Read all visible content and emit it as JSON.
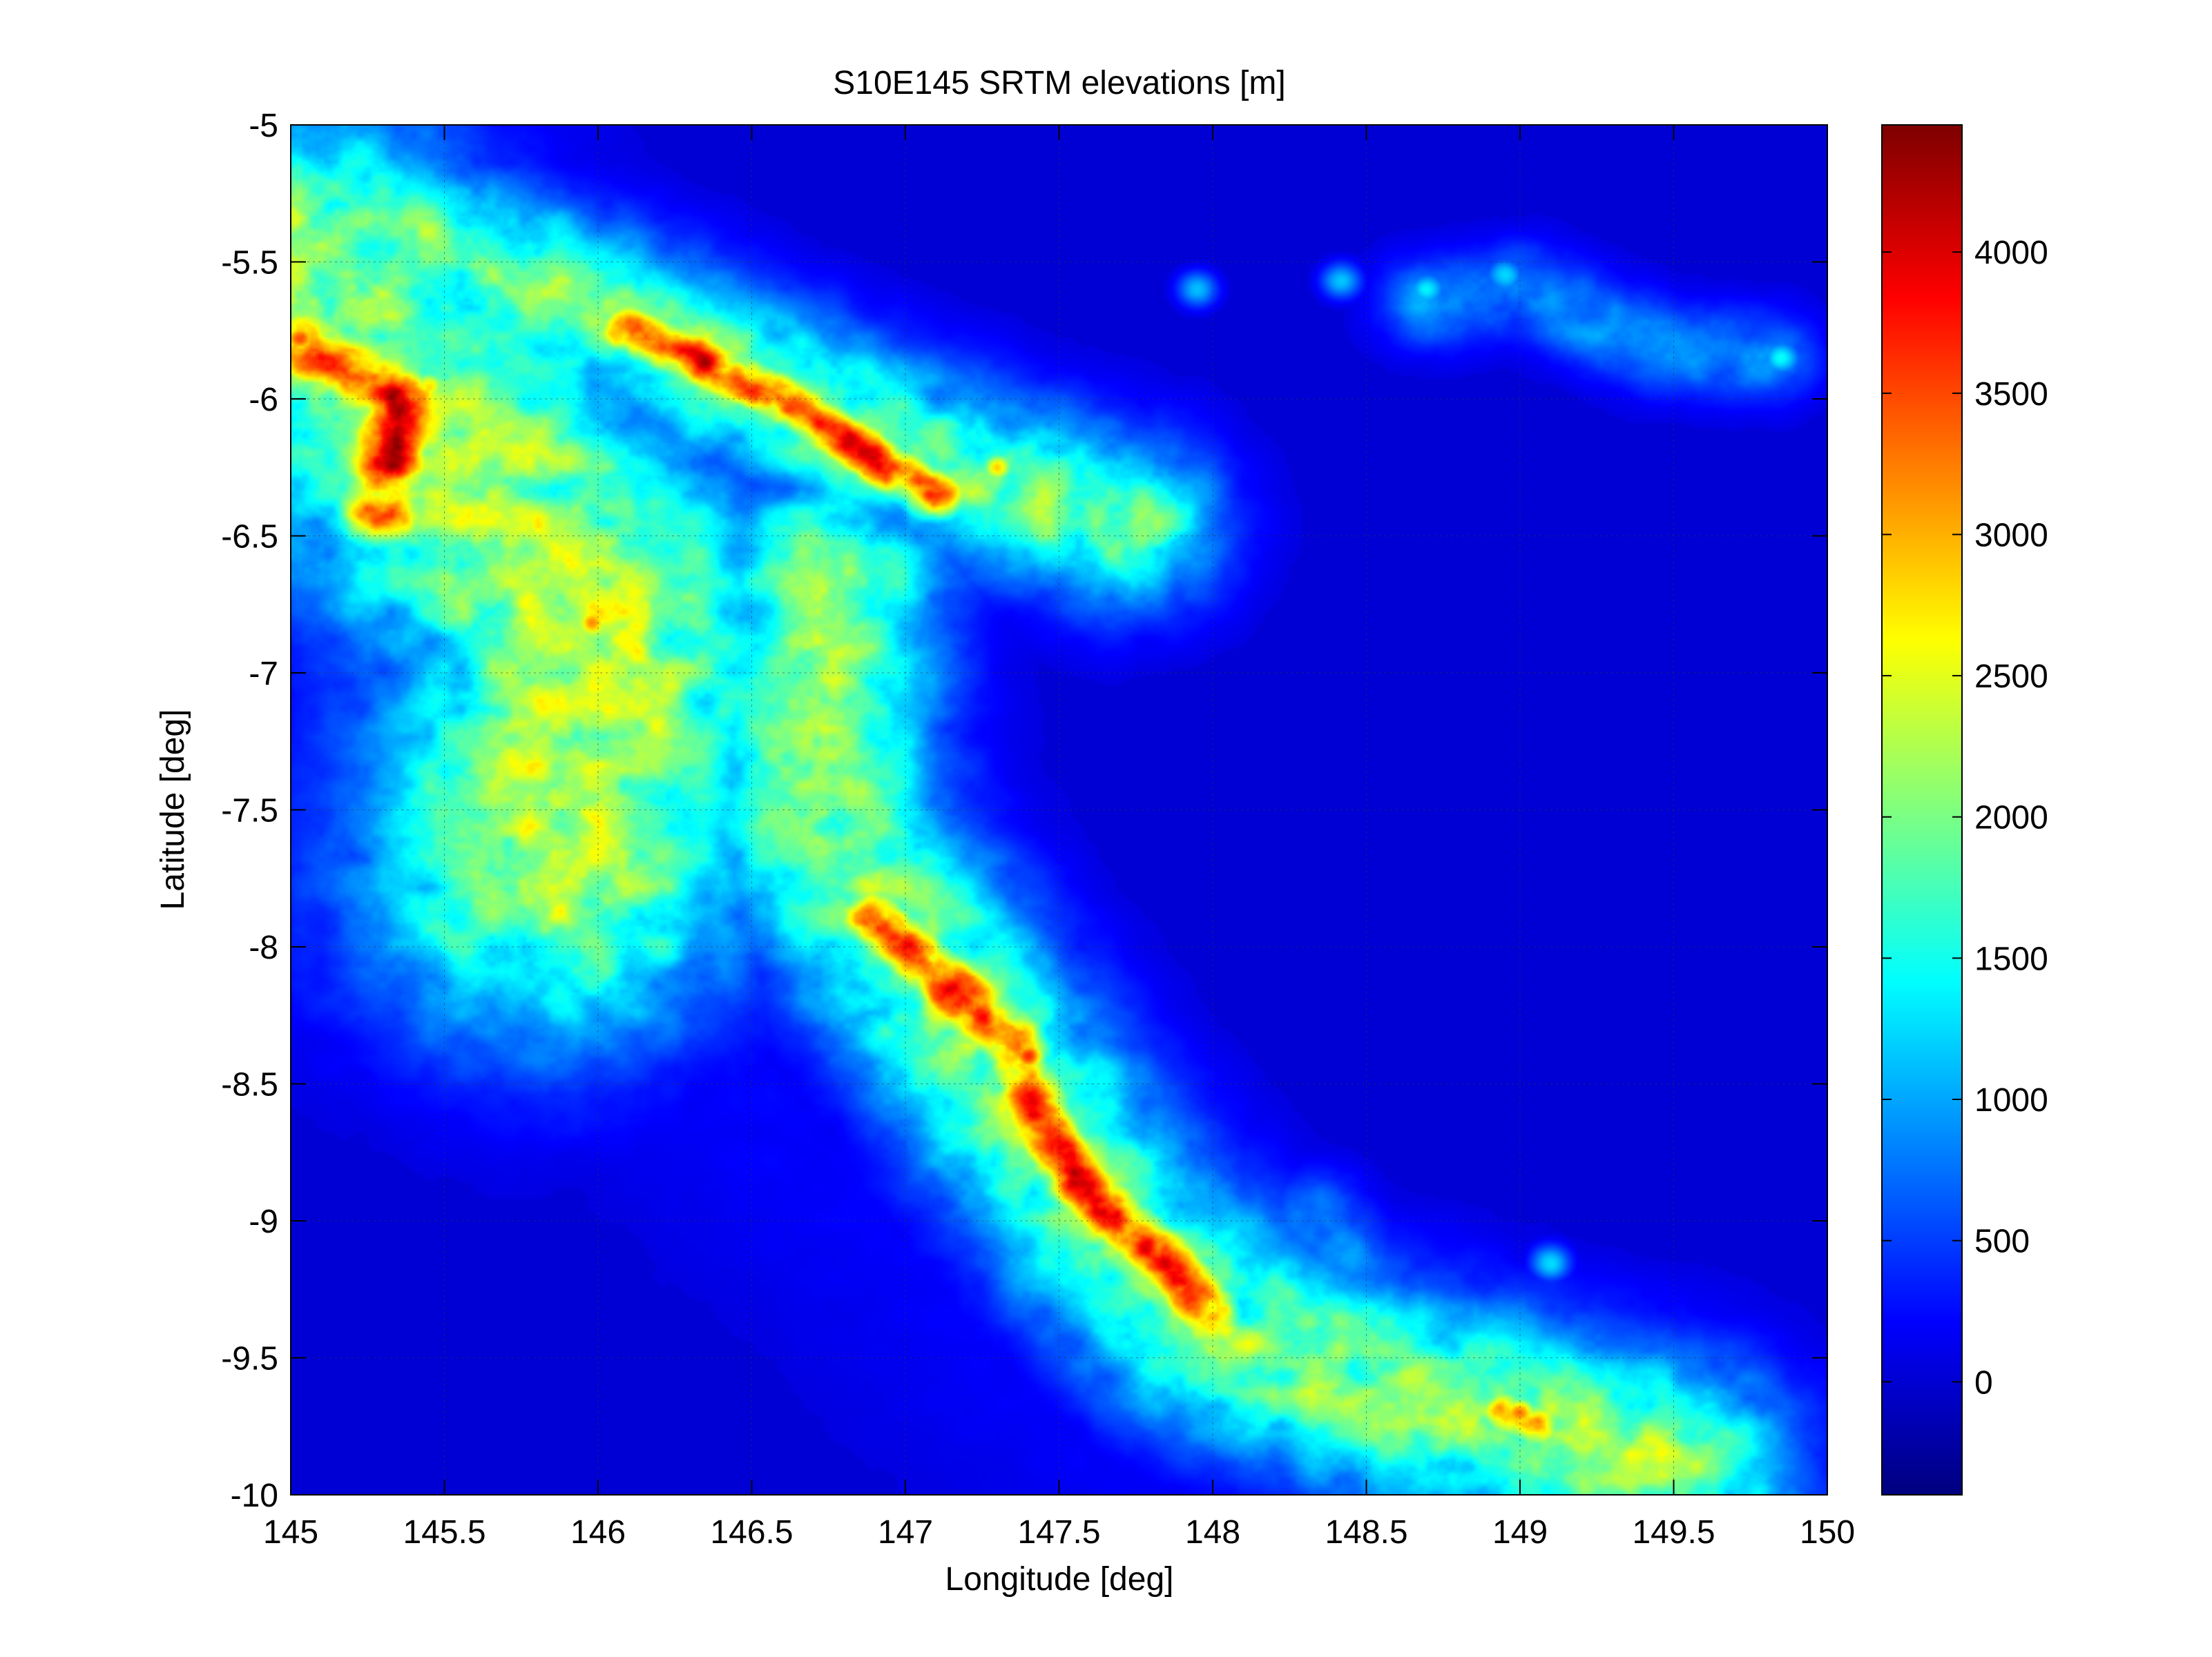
{
  "chart_data": {
    "type": "heatmap",
    "title": "S10E145 SRTM elevations [m]",
    "xlabel": "Longitude [deg]",
    "ylabel": "Latitude [deg]",
    "xlim": [
      145,
      150
    ],
    "ylim": [
      -10,
      -5
    ],
    "grid": true,
    "x_ticks": [
      145,
      145.5,
      146,
      146.5,
      147,
      147.5,
      148,
      148.5,
      149,
      149.5,
      150
    ],
    "x_tick_labels": [
      "145",
      "145.5",
      "146",
      "146.5",
      "147",
      "147.5",
      "148",
      "148.5",
      "149",
      "149.5",
      "150"
    ],
    "y_ticks": [
      -5,
      -5.5,
      -6,
      -6.5,
      -7,
      -7.5,
      -8,
      -8.5,
      -9,
      -9.5,
      -10
    ],
    "y_tick_labels": [
      "-5",
      "-5.5",
      "-6",
      "-6.5",
      "-7",
      "-7.5",
      "-8",
      "-8.5",
      "-9",
      "-9.5",
      "-10"
    ],
    "colorbar": {
      "colormap": "jet",
      "range": [
        -400,
        4450
      ],
      "ticks": [
        0,
        500,
        1000,
        1500,
        2000,
        2500,
        3000,
        3500,
        4000
      ],
      "tick_labels": [
        "0",
        "500",
        "1000",
        "1500",
        "2000",
        "2500",
        "3000",
        "3500",
        "4000"
      ]
    },
    "sea_value": 0,
    "ridges": [
      {
        "points": [
          [
            145.0,
            -5.55
          ],
          [
            145.3,
            -5.95
          ],
          [
            145.6,
            -6.3
          ],
          [
            145.95,
            -6.75
          ],
          [
            146.0,
            -7.0
          ],
          [
            145.9,
            -7.4
          ],
          [
            145.85,
            -7.7
          ]
        ],
        "peak": 2300,
        "width": 0.45
      },
      {
        "points": [
          [
            145.05,
            -5.8
          ],
          [
            145.35,
            -6.0
          ],
          [
            145.3,
            -6.4
          ]
        ],
        "peak": 3500,
        "width": 0.12
      },
      {
        "points": [
          [
            145.5,
            -6.1
          ],
          [
            145.8,
            -6.45
          ],
          [
            146.2,
            -6.75
          ]
        ],
        "peak": 1700,
        "width": 0.35
      },
      {
        "points": [
          [
            145.45,
            -5.45
          ],
          [
            146.0,
            -5.68
          ],
          [
            146.5,
            -5.95
          ],
          [
            147.0,
            -6.2
          ],
          [
            147.3,
            -6.3
          ],
          [
            147.7,
            -6.45
          ]
        ],
        "peak": 2000,
        "width": 0.22
      },
      {
        "points": [
          [
            146.1,
            -5.75
          ],
          [
            146.6,
            -6.0
          ],
          [
            147.1,
            -6.35
          ]
        ],
        "peak": 3400,
        "width": 0.08
      },
      {
        "points": [
          [
            146.75,
            -6.65
          ],
          [
            146.7,
            -7.2
          ],
          [
            146.75,
            -7.6
          ],
          [
            147.0,
            -8.0
          ],
          [
            147.2,
            -8.3
          ],
          [
            147.45,
            -8.7
          ],
          [
            147.7,
            -9.05
          ],
          [
            148.0,
            -9.4
          ],
          [
            148.5,
            -9.6
          ],
          [
            149.0,
            -9.75
          ],
          [
            149.5,
            -9.9
          ]
        ],
        "peak": 2100,
        "width": 0.27
      },
      {
        "points": [
          [
            146.9,
            -7.9
          ],
          [
            147.1,
            -8.1
          ],
          [
            147.35,
            -8.35
          ],
          [
            147.45,
            -8.65
          ],
          [
            147.55,
            -8.85
          ],
          [
            147.85,
            -9.15
          ],
          [
            148.0,
            -9.35
          ]
        ],
        "peak": 3600,
        "width": 0.09
      },
      {
        "points": [
          [
            146.2,
            -7.3
          ],
          [
            146.5,
            -7.6
          ]
        ],
        "peak": 1200,
        "width": 0.2
      },
      {
        "points": [
          [
            148.35,
            -9.0
          ],
          [
            148.5,
            -9.3
          ]
        ],
        "peak": 900,
        "width": 0.12
      },
      {
        "points": [
          [
            148.7,
            -5.65
          ],
          [
            149.0,
            -5.6
          ],
          [
            149.4,
            -5.8
          ],
          [
            149.8,
            -5.85
          ]
        ],
        "peak": 900,
        "width": 0.12
      },
      {
        "points": [
          [
            148.95,
            -9.7
          ],
          [
            149.05,
            -9.75
          ]
        ],
        "peak": 3200,
        "width": 0.07
      }
    ],
    "peaks": [
      {
        "lon": 145.03,
        "lat": -5.78,
        "elev": 4000
      },
      {
        "lon": 145.18,
        "lat": -5.94,
        "elev": 3500
      },
      {
        "lon": 145.32,
        "lat": -6.43,
        "elev": 3500
      },
      {
        "lon": 145.45,
        "lat": -5.95,
        "elev": 3000
      },
      {
        "lon": 145.98,
        "lat": -6.82,
        "elev": 3300
      },
      {
        "lon": 146.45,
        "lat": -5.9,
        "elev": 3500
      },
      {
        "lon": 146.55,
        "lat": -6.0,
        "elev": 3600
      },
      {
        "lon": 147.08,
        "lat": -6.35,
        "elev": 3900
      },
      {
        "lon": 146.95,
        "lat": -6.27,
        "elev": 3500
      },
      {
        "lon": 147.3,
        "lat": -6.25,
        "elev": 3000
      },
      {
        "lon": 147.05,
        "lat": -8.05,
        "elev": 3800
      },
      {
        "lon": 147.4,
        "lat": -8.4,
        "elev": 4100
      },
      {
        "lon": 147.55,
        "lat": -8.85,
        "elev": 3800
      },
      {
        "lon": 147.85,
        "lat": -9.2,
        "elev": 3500
      },
      {
        "lon": 148.0,
        "lat": -9.35,
        "elev": 3500
      },
      {
        "lon": 149.0,
        "lat": -9.7,
        "elev": 3700
      },
      {
        "lon": 149.85,
        "lat": -5.85,
        "elev": 1500
      },
      {
        "lon": 148.95,
        "lat": -5.55,
        "elev": 1400
      },
      {
        "lon": 148.7,
        "lat": -5.6,
        "elev": 1400
      },
      {
        "lon": 148.42,
        "lat": -5.57,
        "elev": 1300
      },
      {
        "lon": 147.95,
        "lat": -5.6,
        "elev": 1200
      },
      {
        "lon": 149.1,
        "lat": -9.15,
        "elev": 1400
      },
      {
        "lon": 148.3,
        "lat": -9.2,
        "elev": 1000
      }
    ],
    "lowlands": [
      {
        "points": [
          [
            145.0,
            -7.0
          ],
          [
            145.6,
            -7.6
          ],
          [
            146.2,
            -8.2
          ],
          [
            146.6,
            -8.6
          ],
          [
            147.2,
            -9.2
          ],
          [
            147.6,
            -9.6
          ],
          [
            148.2,
            -10.0
          ]
        ],
        "elev": 200,
        "width": 0.45
      },
      {
        "points": [
          [
            147.6,
            -8.6
          ],
          [
            148.2,
            -9.1
          ],
          [
            148.9,
            -9.5
          ]
        ],
        "elev": 250,
        "width": 0.25
      },
      {
        "points": [
          [
            145.1,
            -5.0
          ],
          [
            145.5,
            -5.05
          ]
        ],
        "elev": 600,
        "width": 0.12
      }
    ]
  }
}
